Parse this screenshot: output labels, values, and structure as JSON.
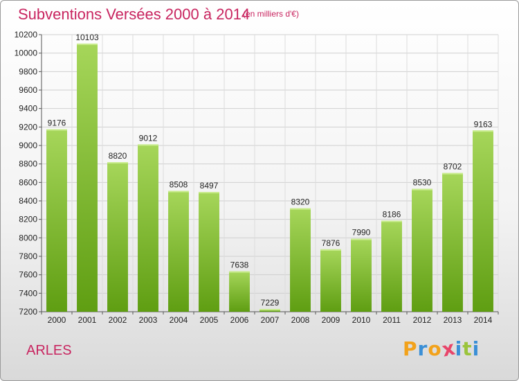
{
  "header": {
    "title": "Subventions Versées 2000 à 2014",
    "subtitle": "(en milliers d'€)"
  },
  "footer": {
    "commune": "ARLES",
    "logo_letters": [
      "P",
      "r",
      "o",
      "x",
      "i",
      "t",
      "i"
    ]
  },
  "colors": {
    "accent": "#c8245f",
    "bar_light": "#a6d65a",
    "bar_dark": "#5f9e12",
    "logo": [
      "#f2a21b",
      "#3a8fd6",
      "#f2a21b",
      "#e8456a",
      "#3a8fd6",
      "#9ac43b",
      "#3a8fd6"
    ]
  },
  "chart_data": {
    "type": "bar",
    "categories": [
      "2000",
      "2001",
      "2002",
      "2003",
      "2004",
      "2005",
      "2006",
      "2007",
      "2008",
      "2009",
      "2010",
      "2011",
      "2012",
      "2013",
      "2014"
    ],
    "values": [
      9176,
      10103,
      8820,
      9012,
      8508,
      8497,
      7638,
      7229,
      8320,
      7876,
      7990,
      8186,
      8530,
      8702,
      9163
    ],
    "ylim": [
      7200,
      10200
    ],
    "yticks": [
      7200,
      7400,
      7600,
      7800,
      8000,
      8200,
      8400,
      8600,
      8800,
      9000,
      9200,
      9400,
      9600,
      9800,
      10000,
      10200
    ],
    "grid": true,
    "data_labels": true
  }
}
